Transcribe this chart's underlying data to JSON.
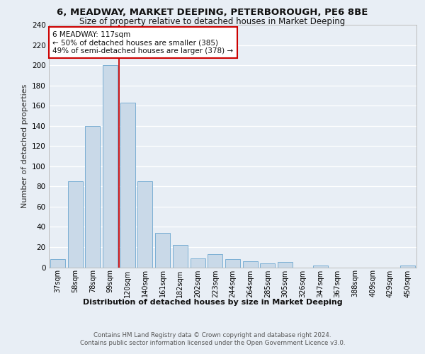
{
  "title1": "6, MEADWAY, MARKET DEEPING, PETERBOROUGH, PE6 8BE",
  "title2": "Size of property relative to detached houses in Market Deeping",
  "xlabel": "Distribution of detached houses by size in Market Deeping",
  "ylabel": "Number of detached properties",
  "bar_labels": [
    "37sqm",
    "58sqm",
    "78sqm",
    "99sqm",
    "120sqm",
    "140sqm",
    "161sqm",
    "182sqm",
    "202sqm",
    "223sqm",
    "244sqm",
    "264sqm",
    "285sqm",
    "305sqm",
    "326sqm",
    "347sqm",
    "367sqm",
    "388sqm",
    "409sqm",
    "429sqm",
    "450sqm"
  ],
  "bar_values": [
    8,
    85,
    140,
    200,
    163,
    85,
    34,
    22,
    9,
    13,
    8,
    6,
    4,
    5,
    0,
    2,
    0,
    0,
    0,
    0,
    2
  ],
  "bar_color": "#c9d9e8",
  "bar_edge_color": "#7bafd4",
  "vline_x": 3.5,
  "annotation_line1": "6 MEADWAY: 117sqm",
  "annotation_line2": "← 50% of detached houses are smaller (385)",
  "annotation_line3": "49% of semi-detached houses are larger (378) →",
  "annotation_box_color": "#ffffff",
  "annotation_box_edge": "#cc0000",
  "vline_color": "#cc0000",
  "ylim": [
    0,
    240
  ],
  "yticks": [
    0,
    20,
    40,
    60,
    80,
    100,
    120,
    140,
    160,
    180,
    200,
    220,
    240
  ],
  "footer1": "Contains HM Land Registry data © Crown copyright and database right 2024.",
  "footer2": "Contains public sector information licensed under the Open Government Licence v3.0.",
  "bg_color": "#e8eef5",
  "plot_bg_color": "#e8eef5",
  "grid_color": "#ffffff"
}
